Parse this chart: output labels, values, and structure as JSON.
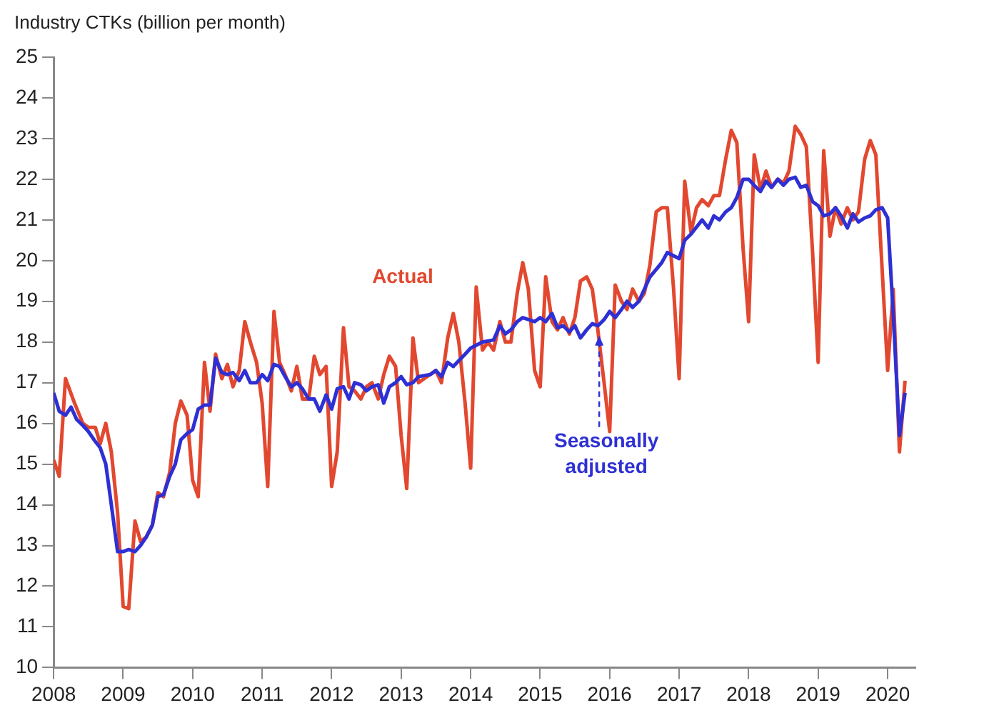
{
  "chart_data": {
    "type": "line",
    "ylabel": "Industry CTKs (billion per month)",
    "xlim": [
      2008,
      2020.4
    ],
    "xticks": [
      2008,
      2009,
      2010,
      2011,
      2012,
      2013,
      2014,
      2015,
      2016,
      2017,
      2018,
      2019,
      2020
    ],
    "ylim": [
      10,
      25
    ],
    "yticks": [
      10,
      11,
      12,
      13,
      14,
      15,
      16,
      17,
      18,
      19,
      20,
      21,
      22,
      23,
      24,
      25
    ],
    "grid": false,
    "legend": false,
    "marker": "none",
    "line_style": "solid",
    "annotations": [
      "Actual",
      {
        "text": "Seasonally adjusted",
        "x": 2015.85,
        "y": 18.3
      }
    ],
    "series": [
      {
        "color": "#e2482f",
        "x": [
          2008.0,
          2008.08,
          2008.17,
          2008.3,
          2008.42,
          2008.5,
          2008.6,
          2008.67,
          2008.75,
          2008.83,
          2008.92,
          2009.0,
          2009.08,
          2009.17,
          2009.25,
          2009.33,
          2009.42,
          2009.5,
          2009.58,
          2009.67,
          2009.75,
          2009.83,
          2009.92,
          2010.0,
          2010.08,
          2010.17,
          2010.25,
          2010.33,
          2010.42,
          2010.5,
          2010.58,
          2010.67,
          2010.75,
          2010.83,
          2010.92,
          2011.0,
          2011.08,
          2011.17,
          2011.25,
          2011.33,
          2011.42,
          2011.5,
          2011.58,
          2011.67,
          2011.75,
          2011.83,
          2011.92,
          2012.0,
          2012.08,
          2012.17,
          2012.25,
          2012.33,
          2012.42,
          2012.5,
          2012.58,
          2012.67,
          2012.75,
          2012.83,
          2012.92,
          2013.0,
          2013.08,
          2013.17,
          2013.25,
          2013.33,
          2013.5,
          2013.58,
          2013.67,
          2013.75,
          2013.83,
          2013.92,
          2014.0,
          2014.08,
          2014.17,
          2014.25,
          2014.33,
          2014.42,
          2014.5,
          2014.58,
          2014.67,
          2014.75,
          2014.83,
          2014.92,
          2015.0,
          2015.08,
          2015.17,
          2015.25,
          2015.33,
          2015.42,
          2015.5,
          2015.58,
          2015.67,
          2015.75,
          2015.83,
          2015.92,
          2016.0,
          2016.08,
          2016.17,
          2016.25,
          2016.33,
          2016.42,
          2016.5,
          2016.58,
          2016.67,
          2016.75,
          2016.83,
          2016.92,
          2017.0,
          2017.08,
          2017.17,
          2017.25,
          2017.33,
          2017.42,
          2017.5,
          2017.58,
          2017.67,
          2017.75,
          2017.83,
          2017.92,
          2018.0,
          2018.08,
          2018.17,
          2018.25,
          2018.33,
          2018.42,
          2018.5,
          2018.58,
          2018.67,
          2018.75,
          2018.83,
          2018.92,
          2019.0,
          2019.08,
          2019.17,
          2019.25,
          2019.33,
          2019.42,
          2019.5,
          2019.58,
          2019.67,
          2019.75,
          2019.83,
          2019.92,
          2020.0,
          2020.08,
          2020.17,
          2020.25
        ],
        "values": [
          15.1,
          14.7,
          17.1,
          16.5,
          16.0,
          15.9,
          15.9,
          15.5,
          16.0,
          15.3,
          13.8,
          11.5,
          11.45,
          13.6,
          13.1,
          13.2,
          13.5,
          14.3,
          14.2,
          14.8,
          16.0,
          16.55,
          16.2,
          14.6,
          14.2,
          17.5,
          16.3,
          17.7,
          17.1,
          17.45,
          16.9,
          17.3,
          18.5,
          18.0,
          17.5,
          16.5,
          14.45,
          18.75,
          17.5,
          17.2,
          16.8,
          17.4,
          16.6,
          16.6,
          17.65,
          17.2,
          17.4,
          14.45,
          15.3,
          18.35,
          16.9,
          16.8,
          16.6,
          16.9,
          17.0,
          16.6,
          17.2,
          17.65,
          17.4,
          15.7,
          14.4,
          18.1,
          17.0,
          17.1,
          17.3,
          17.0,
          18.1,
          18.7,
          18.0,
          16.5,
          14.9,
          19.35,
          17.8,
          18.0,
          17.8,
          18.5,
          18.0,
          18.0,
          19.2,
          19.95,
          19.3,
          17.3,
          16.9,
          19.6,
          18.5,
          18.3,
          18.6,
          18.2,
          18.6,
          19.5,
          19.6,
          19.3,
          18.3,
          17.0,
          15.8,
          19.4,
          19.0,
          18.8,
          19.3,
          19.0,
          19.2,
          19.9,
          21.2,
          21.3,
          21.3,
          19.3,
          17.1,
          21.95,
          20.7,
          21.3,
          21.5,
          21.35,
          21.6,
          21.6,
          22.5,
          23.2,
          22.9,
          20.3,
          18.5,
          22.6,
          21.75,
          22.2,
          21.8,
          22.0,
          21.9,
          22.2,
          23.3,
          23.1,
          22.8,
          20.2,
          17.5,
          22.7,
          20.6,
          21.3,
          20.9,
          21.3,
          21.0,
          21.2,
          22.5,
          22.95,
          22.6,
          19.8,
          17.3,
          19.3,
          15.3,
          17.05
        ]
      },
      {
        "color": "#2e30d4",
        "x": [
          2008.0,
          2008.08,
          2008.17,
          2008.25,
          2008.33,
          2008.42,
          2008.5,
          2008.58,
          2008.67,
          2008.75,
          2008.83,
          2008.92,
          2009.0,
          2009.08,
          2009.17,
          2009.25,
          2009.33,
          2009.42,
          2009.5,
          2009.58,
          2009.67,
          2009.75,
          2009.83,
          2009.92,
          2010.0,
          2010.08,
          2010.17,
          2010.25,
          2010.33,
          2010.42,
          2010.5,
          2010.58,
          2010.67,
          2010.75,
          2010.83,
          2010.92,
          2011.0,
          2011.08,
          2011.17,
          2011.25,
          2011.33,
          2011.42,
          2011.5,
          2011.58,
          2011.67,
          2011.75,
          2011.83,
          2011.92,
          2012.0,
          2012.08,
          2012.17,
          2012.25,
          2012.33,
          2012.42,
          2012.5,
          2012.58,
          2012.67,
          2012.75,
          2012.83,
          2012.92,
          2013.0,
          2013.08,
          2013.17,
          2013.25,
          2013.42,
          2013.5,
          2013.58,
          2013.67,
          2013.75,
          2013.92,
          2014.0,
          2014.17,
          2014.33,
          2014.42,
          2014.5,
          2014.58,
          2014.67,
          2014.75,
          2014.92,
          2015.0,
          2015.08,
          2015.17,
          2015.25,
          2015.33,
          2015.42,
          2015.5,
          2015.58,
          2015.67,
          2015.75,
          2015.83,
          2015.92,
          2016.0,
          2016.08,
          2016.17,
          2016.25,
          2016.33,
          2016.42,
          2016.5,
          2016.58,
          2016.75,
          2016.83,
          2017.0,
          2017.08,
          2017.17,
          2017.33,
          2017.42,
          2017.5,
          2017.58,
          2017.67,
          2017.75,
          2017.83,
          2017.92,
          2018.0,
          2018.08,
          2018.17,
          2018.25,
          2018.33,
          2018.42,
          2018.5,
          2018.58,
          2018.67,
          2018.75,
          2018.83,
          2018.92,
          2019.0,
          2019.08,
          2019.17,
          2019.25,
          2019.33,
          2019.42,
          2019.5,
          2019.58,
          2019.67,
          2019.75,
          2019.83,
          2019.92,
          2020.0,
          2020.08,
          2020.17,
          2020.25
        ],
        "values": [
          16.75,
          16.3,
          16.2,
          16.4,
          16.1,
          15.95,
          15.8,
          15.6,
          15.4,
          15.0,
          14.0,
          12.85,
          12.85,
          12.9,
          12.85,
          13.0,
          13.2,
          13.5,
          14.2,
          14.25,
          14.7,
          15.0,
          15.6,
          15.75,
          15.85,
          16.35,
          16.45,
          16.45,
          17.6,
          17.25,
          17.2,
          17.25,
          17.05,
          17.3,
          17.0,
          17.0,
          17.2,
          17.05,
          17.45,
          17.4,
          17.15,
          16.9,
          17.0,
          16.85,
          16.6,
          16.6,
          16.3,
          16.7,
          16.35,
          16.85,
          16.9,
          16.6,
          17.0,
          16.95,
          16.8,
          16.9,
          16.95,
          16.5,
          16.9,
          17.0,
          17.15,
          16.95,
          17.0,
          17.15,
          17.2,
          17.3,
          17.15,
          17.5,
          17.4,
          17.7,
          17.85,
          18.0,
          18.05,
          18.4,
          18.2,
          18.3,
          18.5,
          18.6,
          18.5,
          18.6,
          18.5,
          18.7,
          18.35,
          18.4,
          18.25,
          18.4,
          18.1,
          18.3,
          18.45,
          18.4,
          18.55,
          18.75,
          18.6,
          18.8,
          19.0,
          18.85,
          19.0,
          19.3,
          19.6,
          19.95,
          20.2,
          20.05,
          20.5,
          20.65,
          21.0,
          20.8,
          21.1,
          21.0,
          21.2,
          21.3,
          21.55,
          22.0,
          22.0,
          21.85,
          21.7,
          21.95,
          21.8,
          22.0,
          21.85,
          22.0,
          22.05,
          21.8,
          21.85,
          21.45,
          21.35,
          21.1,
          21.15,
          21.3,
          21.1,
          20.8,
          21.15,
          20.95,
          21.05,
          21.1,
          21.25,
          21.3,
          21.05,
          18.7,
          15.7,
          16.75
        ]
      }
    ]
  }
}
